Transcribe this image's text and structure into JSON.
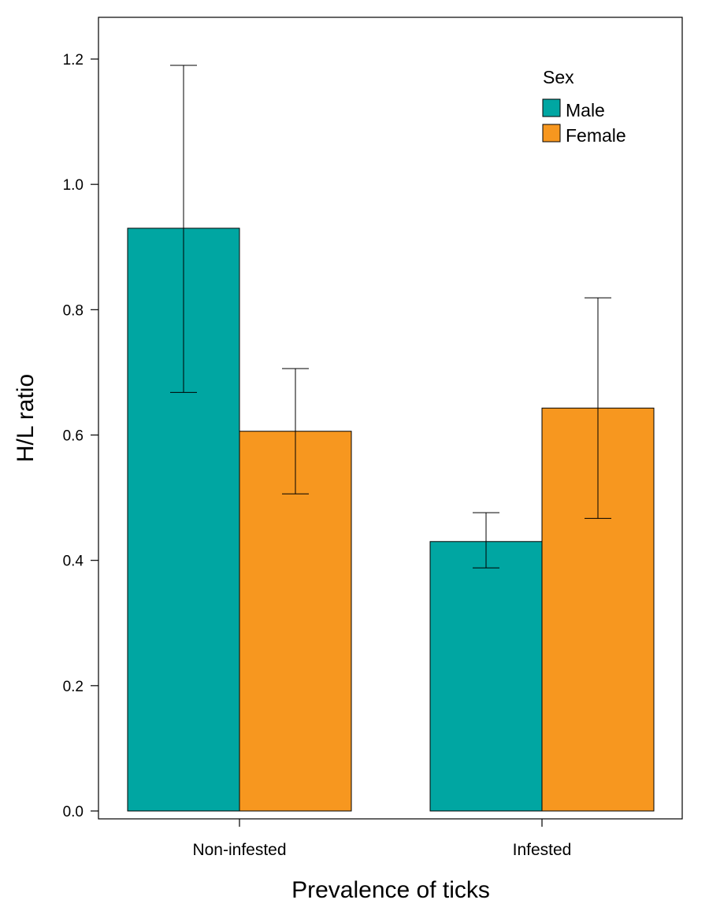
{
  "chart_data": {
    "type": "bar",
    "xlabel": "Prevalence of ticks",
    "ylabel": "H/L ratio",
    "categories": [
      "Non-infested",
      "Infested"
    ],
    "ylim": [
      0,
      1.2
    ],
    "yticks": [
      "0.0",
      "0.2",
      "0.4",
      "0.6",
      "0.8",
      "1.0",
      "1.2"
    ],
    "grid": false,
    "legend": {
      "title": "Sex",
      "placement": "top-right"
    },
    "series": [
      {
        "name": "Male",
        "color": "#00A6A2",
        "values": [
          0.93,
          0.43
        ],
        "err_low": [
          0.668,
          0.388
        ],
        "err_high": [
          1.19,
          0.476
        ]
      },
      {
        "name": "Female",
        "color": "#F7971F",
        "values": [
          0.606,
          0.643
        ],
        "err_low": [
          0.506,
          0.467
        ],
        "err_high": [
          0.706,
          0.819
        ]
      }
    ]
  }
}
